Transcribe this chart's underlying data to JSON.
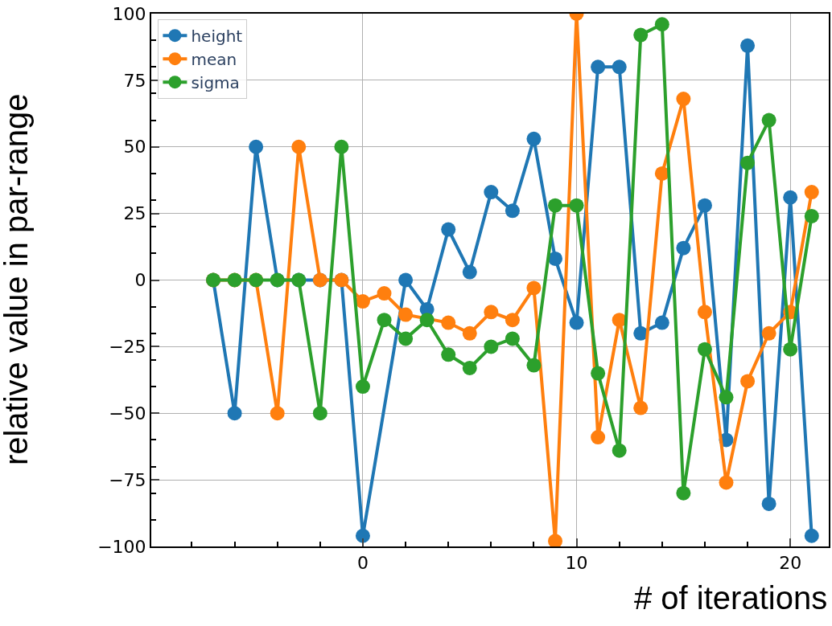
{
  "chart_data": {
    "type": "line",
    "xlabel": "# of iterations",
    "ylabel": "relative value in par-range",
    "x": [
      -7,
      -6,
      -5,
      -4,
      -3,
      -2,
      -1,
      0,
      1,
      2,
      3,
      4,
      5,
      6,
      7,
      8,
      9,
      10,
      11,
      12,
      13,
      14,
      15,
      16,
      17,
      18,
      19,
      20,
      21
    ],
    "series": [
      {
        "name": "height",
        "color": "#1f77b4",
        "values": [
          0,
          -50,
          50,
          0,
          0,
          0,
          0,
          -96,
          null,
          0,
          -11,
          19,
          3,
          33,
          26,
          53,
          8,
          -16,
          80,
          80,
          -20,
          -16,
          12,
          28,
          -60,
          88,
          -84,
          31,
          -96
        ]
      },
      {
        "name": "mean",
        "color": "#ff7f0e",
        "values": [
          0,
          0,
          0,
          -50,
          50,
          0,
          0,
          -8,
          -5,
          -13,
          null,
          -16,
          -20,
          -12,
          -15,
          -3,
          -98,
          100,
          -59,
          -15,
          -48,
          40,
          68,
          -12,
          -76,
          -38,
          -20,
          -12,
          33
        ]
      },
      {
        "name": "sigma",
        "color": "#2ca02c",
        "values": [
          0,
          0,
          0,
          0,
          0,
          -50,
          50,
          -40,
          -15,
          -22,
          -15,
          -28,
          -33,
          -25,
          -22,
          -32,
          28,
          28,
          -35,
          -64,
          92,
          96,
          -80,
          -26,
          -44,
          44,
          60,
          -26,
          24
        ]
      }
    ],
    "xlim": [
      -9.9,
      21.8
    ],
    "ylim": [
      -100,
      100
    ],
    "xticks": [
      0,
      10,
      20
    ],
    "yticks": [
      {
        "value": -100,
        "label": "−100"
      },
      {
        "value": -75,
        "label": "−75"
      },
      {
        "value": -50,
        "label": "−50"
      },
      {
        "value": -25,
        "label": "−25"
      },
      0,
      25,
      50,
      75,
      100
    ],
    "grid": true,
    "legend": "top left",
    "marker": "circle",
    "line_style": "solid"
  }
}
